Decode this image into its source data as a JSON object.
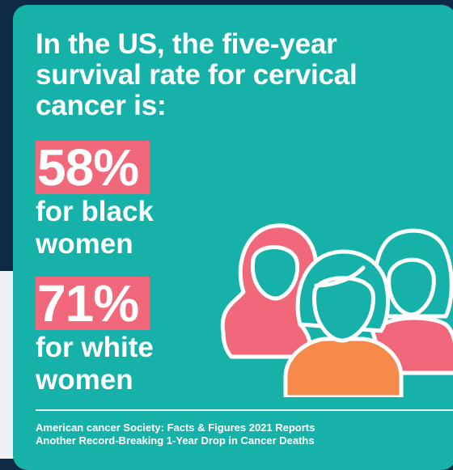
{
  "headline": [
    "In the US, the five-year",
    "survival rate for cervical",
    "cancer is:"
  ],
  "stats": [
    {
      "value": "58%",
      "desc": [
        "for black",
        "women"
      ]
    },
    {
      "value": "71%",
      "desc": [
        "for white",
        "women"
      ]
    }
  ],
  "source": [
    "American cancer Society: Facts & Figures 2021 Reports",
    "Another Record-Breaking 1-Year Drop in Cancer Deaths"
  ],
  "icons": [
    "woman-headscarf-icon",
    "woman-short-hair-icon",
    "woman-long-hair-icon"
  ],
  "colors": {
    "card": "#16b2aa",
    "accent_pink": "#f0687a",
    "accent_orange": "#f58a4b",
    "dark_bg": "#0e2a44"
  }
}
